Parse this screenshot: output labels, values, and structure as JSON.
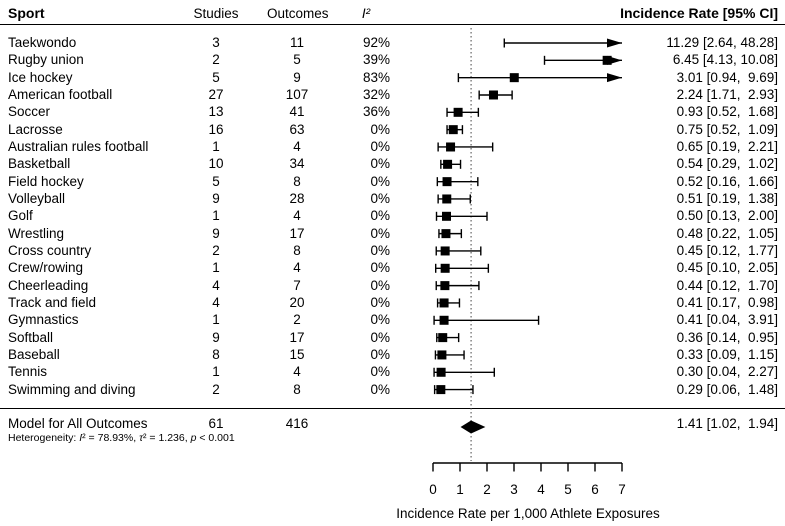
{
  "header": {
    "sport": "Sport",
    "studies": "Studies",
    "outcomes": "Outcomes",
    "i2": "I²",
    "incidence": "Incidence Rate [95% CI]"
  },
  "chart_data": {
    "type": "forest",
    "xlabel": "Incidence Rate per 1,000 Athlete Exposures",
    "xlim": [
      0,
      7
    ],
    "x_ticks": [
      0,
      1,
      2,
      3,
      4,
      5,
      6,
      7
    ],
    "ref_line": 1.41,
    "rows": [
      {
        "label": "Taekwondo",
        "studies": 3,
        "outcomes": 11,
        "i2": "92%",
        "est": 11.29,
        "lo": 2.64,
        "hi": 48.28,
        "ci_text": "11.29 [2.64, 48.28]"
      },
      {
        "label": "Rugby union",
        "studies": 2,
        "outcomes": 5,
        "i2": "39%",
        "est": 6.45,
        "lo": 4.13,
        "hi": 10.08,
        "ci_text": "6.45 [4.13, 10.08]"
      },
      {
        "label": "Ice hockey",
        "studies": 5,
        "outcomes": 9,
        "i2": "83%",
        "est": 3.01,
        "lo": 0.94,
        "hi": 9.69,
        "ci_text": "3.01 [0.94,  9.69]"
      },
      {
        "label": "American football",
        "studies": 27,
        "outcomes": 107,
        "i2": "32%",
        "est": 2.24,
        "lo": 1.71,
        "hi": 2.93,
        "ci_text": "2.24 [1.71,  2.93]"
      },
      {
        "label": "Soccer",
        "studies": 13,
        "outcomes": 41,
        "i2": "36%",
        "est": 0.93,
        "lo": 0.52,
        "hi": 1.68,
        "ci_text": "0.93 [0.52,  1.68]"
      },
      {
        "label": "Lacrosse",
        "studies": 16,
        "outcomes": 63,
        "i2": "0%",
        "est": 0.75,
        "lo": 0.52,
        "hi": 1.09,
        "ci_text": "0.75 [0.52,  1.09]"
      },
      {
        "label": "Australian rules football",
        "studies": 1,
        "outcomes": 4,
        "i2": "0%",
        "est": 0.65,
        "lo": 0.19,
        "hi": 2.21,
        "ci_text": "0.65 [0.19,  2.21]"
      },
      {
        "label": "Basketball",
        "studies": 10,
        "outcomes": 34,
        "i2": "0%",
        "est": 0.54,
        "lo": 0.29,
        "hi": 1.02,
        "ci_text": "0.54 [0.29,  1.02]"
      },
      {
        "label": "Field hockey",
        "studies": 5,
        "outcomes": 8,
        "i2": "0%",
        "est": 0.52,
        "lo": 0.16,
        "hi": 1.66,
        "ci_text": "0.52 [0.16,  1.66]"
      },
      {
        "label": "Volleyball",
        "studies": 9,
        "outcomes": 28,
        "i2": "0%",
        "est": 0.51,
        "lo": 0.19,
        "hi": 1.38,
        "ci_text": "0.51 [0.19,  1.38]"
      },
      {
        "label": "Golf",
        "studies": 1,
        "outcomes": 4,
        "i2": "0%",
        "est": 0.5,
        "lo": 0.13,
        "hi": 2.0,
        "ci_text": "0.50 [0.13,  2.00]"
      },
      {
        "label": "Wrestling",
        "studies": 9,
        "outcomes": 17,
        "i2": "0%",
        "est": 0.48,
        "lo": 0.22,
        "hi": 1.05,
        "ci_text": "0.48 [0.22,  1.05]"
      },
      {
        "label": "Cross country",
        "studies": 2,
        "outcomes": 8,
        "i2": "0%",
        "est": 0.45,
        "lo": 0.12,
        "hi": 1.77,
        "ci_text": "0.45 [0.12,  1.77]"
      },
      {
        "label": "Crew/rowing",
        "studies": 1,
        "outcomes": 4,
        "i2": "0%",
        "est": 0.45,
        "lo": 0.1,
        "hi": 2.05,
        "ci_text": "0.45 [0.10,  2.05]"
      },
      {
        "label": "Cheerleading",
        "studies": 4,
        "outcomes": 7,
        "i2": "0%",
        "est": 0.44,
        "lo": 0.12,
        "hi": 1.7,
        "ci_text": "0.44 [0.12,  1.70]"
      },
      {
        "label": "Track and field",
        "studies": 4,
        "outcomes": 20,
        "i2": "0%",
        "est": 0.41,
        "lo": 0.17,
        "hi": 0.98,
        "ci_text": "0.41 [0.17,  0.98]"
      },
      {
        "label": "Gymnastics",
        "studies": 1,
        "outcomes": 2,
        "i2": "0%",
        "est": 0.41,
        "lo": 0.04,
        "hi": 3.91,
        "ci_text": "0.41 [0.04,  3.91]"
      },
      {
        "label": "Softball",
        "studies": 9,
        "outcomes": 17,
        "i2": "0%",
        "est": 0.36,
        "lo": 0.14,
        "hi": 0.95,
        "ci_text": "0.36 [0.14,  0.95]"
      },
      {
        "label": "Baseball",
        "studies": 8,
        "outcomes": 15,
        "i2": "0%",
        "est": 0.33,
        "lo": 0.09,
        "hi": 1.15,
        "ci_text": "0.33 [0.09,  1.15]"
      },
      {
        "label": "Tennis",
        "studies": 1,
        "outcomes": 4,
        "i2": "0%",
        "est": 0.3,
        "lo": 0.04,
        "hi": 2.27,
        "ci_text": "0.30 [0.04,  2.27]"
      },
      {
        "label": "Swimming and diving",
        "studies": 2,
        "outcomes": 8,
        "i2": "0%",
        "est": 0.29,
        "lo": 0.06,
        "hi": 1.48,
        "ci_text": "0.29 [0.06,  1.48]"
      }
    ],
    "summary": {
      "label": "Model for All Outcomes",
      "studies": 61,
      "outcomes": 416,
      "est": 1.41,
      "lo": 1.02,
      "hi": 1.94,
      "ci_text": "1.41 [1.02,  1.94]"
    },
    "heterogeneity_parts": [
      {
        "t": "Heterogeneity: "
      },
      {
        "t": "I",
        "i": true
      },
      {
        "t": "² = 78.93%, "
      },
      {
        "t": "τ",
        "i": true
      },
      {
        "t": "² = 1.236, "
      },
      {
        "t": "p",
        "i": true
      },
      {
        "t": " < 0.001"
      }
    ]
  }
}
